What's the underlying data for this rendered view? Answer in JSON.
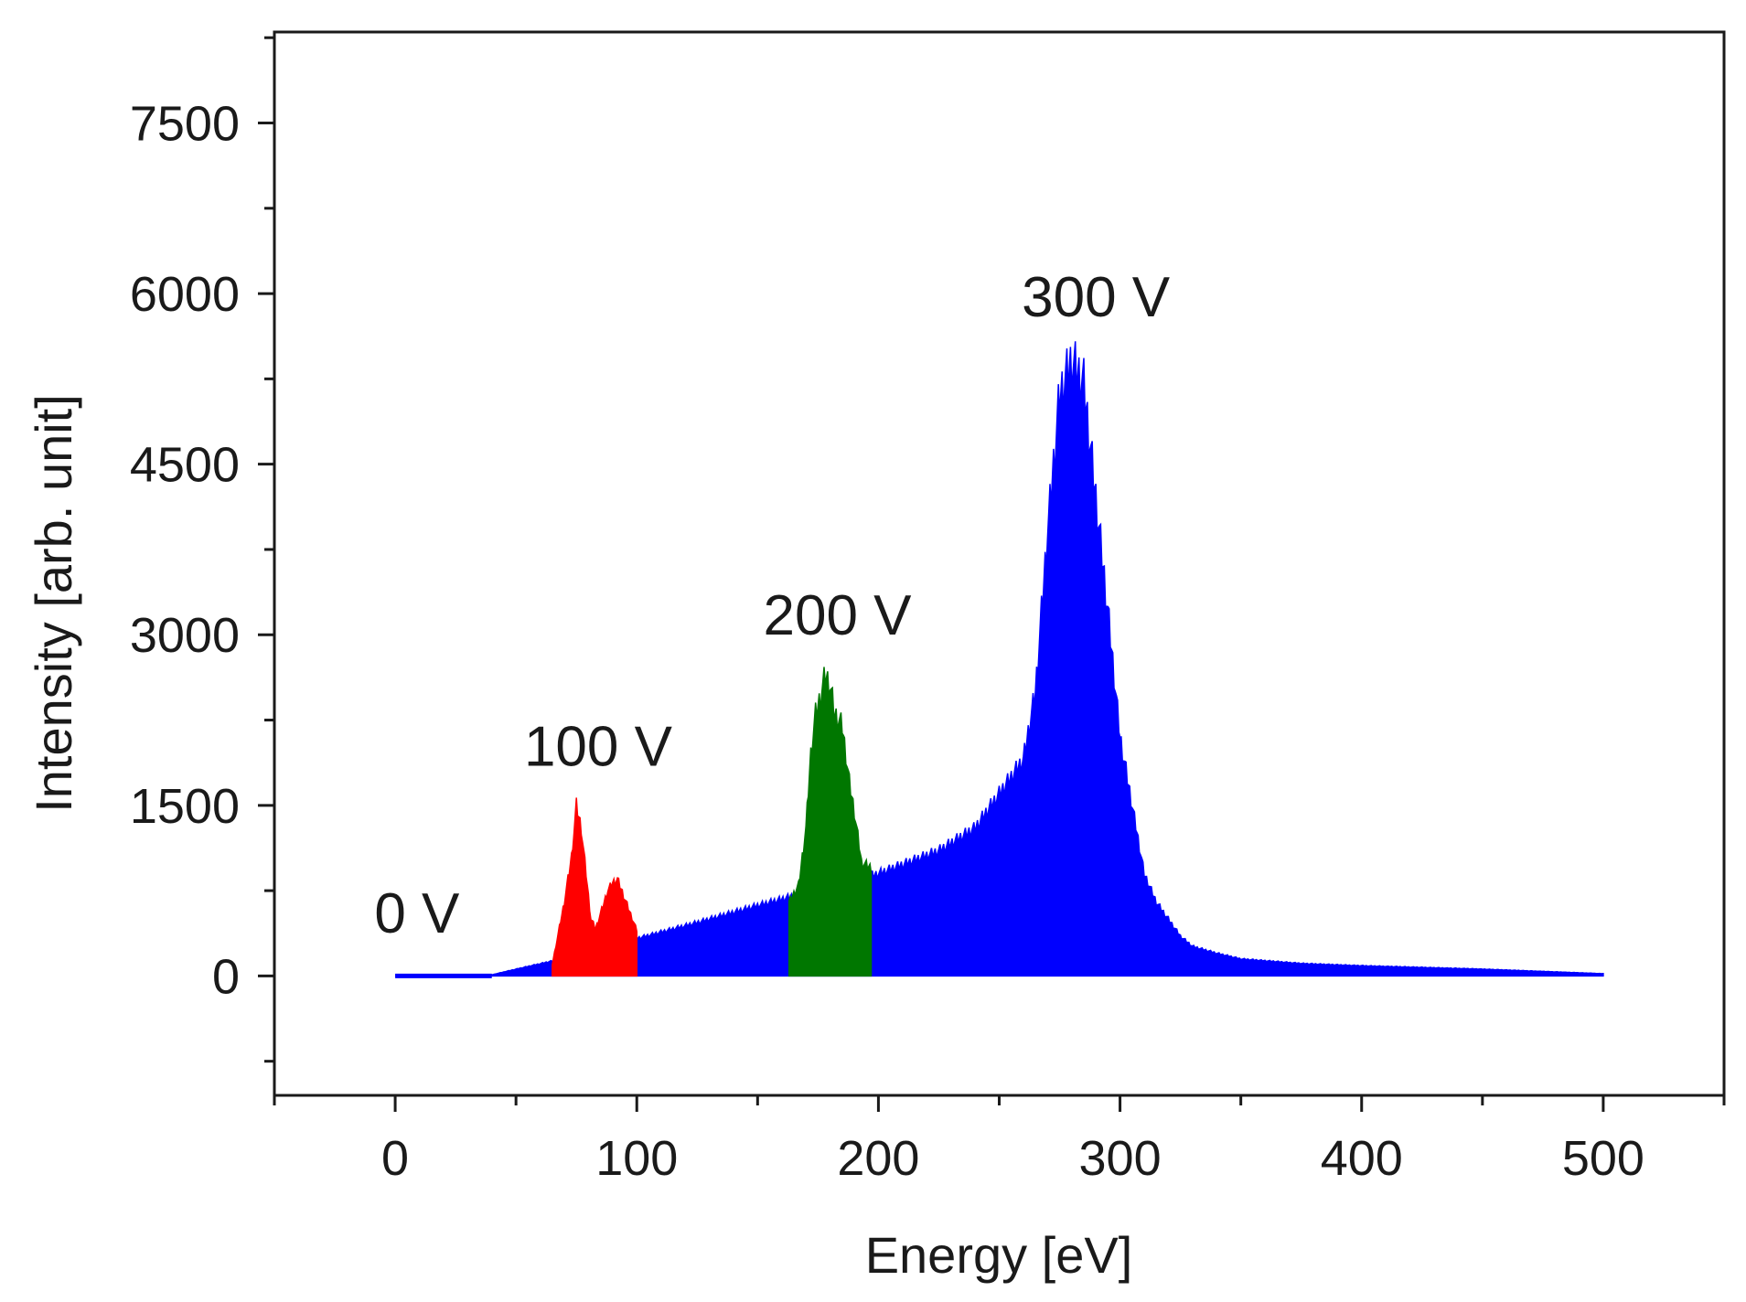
{
  "chart_data": {
    "type": "area",
    "xlabel": "Energy [eV]",
    "ylabel": "Intensity [arb. unit]",
    "xlim": [
      -50,
      550
    ],
    "ylim": [
      -1050,
      8300
    ],
    "xticks": [
      0,
      100,
      200,
      300,
      400,
      500
    ],
    "xtick_labels": [
      "0",
      "100",
      "200",
      "300",
      "400",
      "500"
    ],
    "yticks": [
      0,
      1500,
      3000,
      4500,
      6000,
      7500
    ],
    "ytick_labels": [
      "0",
      "1500",
      "3000",
      "4500",
      "6000",
      "7500"
    ],
    "series": [
      {
        "name": "300 V",
        "color": "#0000ff",
        "x": [
          0,
          38,
          50,
          75,
          100,
          125,
          150,
          175,
          200,
          225,
          240,
          250,
          260,
          265,
          270,
          275,
          280,
          285,
          290,
          295,
          300,
          305,
          310,
          315,
          320,
          325,
          330,
          340,
          350,
          375,
          400,
          450,
          500
        ],
        "y": [
          0,
          0,
          60,
          180,
          330,
          470,
          620,
          760,
          900,
          1100,
          1300,
          1600,
          1900,
          2500,
          3900,
          5100,
          5400,
          5200,
          4200,
          3200,
          2100,
          1500,
          900,
          650,
          500,
          350,
          260,
          200,
          150,
          110,
          90,
          60,
          20
        ]
      },
      {
        "name": "200 V",
        "color": "#007700",
        "x": [
          163,
          167,
          170,
          172,
          174,
          176,
          178,
          180,
          182,
          185,
          188,
          190,
          193,
          197
        ],
        "y": [
          650,
          800,
          1300,
          1950,
          2300,
          2450,
          2650,
          2550,
          2300,
          2200,
          1700,
          1450,
          1000,
          950
        ]
      },
      {
        "name": "100 V",
        "color": "#ff0000",
        "x": [
          65,
          70,
          73,
          75,
          77,
          79,
          81,
          83,
          85,
          88,
          90,
          92,
          95,
          100
        ],
        "y": [
          100,
          650,
          1050,
          1500,
          1300,
          900,
          500,
          420,
          550,
          750,
          820,
          850,
          680,
          400
        ]
      },
      {
        "name": "0 V",
        "color": "#0000ff",
        "x": [
          0,
          40
        ],
        "y": [
          0,
          0
        ]
      }
    ],
    "annotations": [
      {
        "text": "0 V",
        "x": 9,
        "y": 380
      },
      {
        "text": "100 V",
        "x": 84,
        "y": 1850
      },
      {
        "text": "200 V",
        "x": 183,
        "y": 3000
      },
      {
        "text": "300 V",
        "x": 290,
        "y": 5800
      }
    ]
  }
}
